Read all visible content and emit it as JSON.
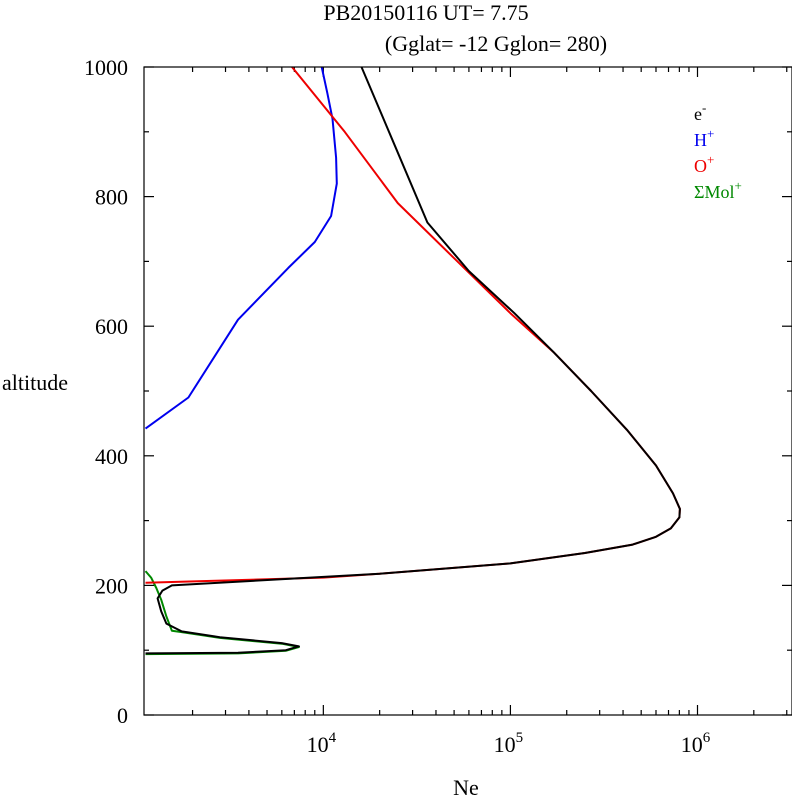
{
  "header": {
    "line1": "PB20150116   UT=  7.75",
    "line2": "(Gglat= -12   Gglon=  280)"
  },
  "chart_data": {
    "type": "line",
    "xlabel": "Ne",
    "ylabel": "altitude",
    "xscale": "log",
    "xlim": [
      1100,
      3200000
    ],
    "ylim": [
      0,
      1000
    ],
    "yticks": [
      {
        "value": 0,
        "label": "0"
      },
      {
        "value": 200,
        "label": "200"
      },
      {
        "value": 400,
        "label": "400"
      },
      {
        "value": 600,
        "label": "600"
      },
      {
        "value": 800,
        "label": "800"
      },
      {
        "value": 1000,
        "label": "1000"
      }
    ],
    "xticks": [
      {
        "value": 10000,
        "base": "10",
        "exp": "4"
      },
      {
        "value": 100000,
        "base": "10",
        "exp": "5"
      },
      {
        "value": 1000000,
        "base": "10",
        "exp": "6"
      }
    ],
    "legend_position": "top-right",
    "series": [
      {
        "name": "e",
        "sup": "-",
        "color": "#000000",
        "points": [
          [
            1120,
            95
          ],
          [
            3500,
            96
          ],
          [
            6300,
            100
          ],
          [
            7400,
            106
          ],
          [
            6000,
            111
          ],
          [
            2800,
            120
          ],
          [
            1750,
            129
          ],
          [
            1450,
            141
          ],
          [
            1360,
            160
          ],
          [
            1300,
            180
          ],
          [
            1380,
            192
          ],
          [
            1550,
            200
          ],
          [
            20000,
            218
          ],
          [
            100000,
            234
          ],
          [
            250000,
            250
          ],
          [
            450000,
            263
          ],
          [
            600000,
            275
          ],
          [
            720000,
            288
          ],
          [
            800000,
            305
          ],
          [
            805000,
            318
          ],
          [
            740000,
            342
          ],
          [
            600000,
            385
          ],
          [
            420000,
            440
          ],
          [
            270000,
            500
          ],
          [
            170000,
            560
          ],
          [
            105000,
            620
          ],
          [
            60000,
            685
          ],
          [
            36000,
            760
          ],
          [
            24000,
            880
          ],
          [
            16000,
            1000
          ]
        ]
      },
      {
        "name": "H",
        "sup": "+",
        "color": "#0000ee",
        "points": [
          [
            1120,
            442
          ],
          [
            1900,
            490
          ],
          [
            3500,
            610
          ],
          [
            6500,
            690
          ],
          [
            9000,
            730
          ],
          [
            11000,
            770
          ],
          [
            11800,
            820
          ],
          [
            11700,
            860
          ],
          [
            11200,
            920
          ],
          [
            10500,
            960
          ],
          [
            9800,
            1000
          ]
        ]
      },
      {
        "name": "O",
        "sup": "+",
        "color": "#ee0000",
        "points": [
          [
            1120,
            204
          ],
          [
            10000,
            212
          ],
          [
            20000,
            218
          ],
          [
            100000,
            234
          ],
          [
            250000,
            250
          ],
          [
            450000,
            263
          ],
          [
            600000,
            275
          ],
          [
            720000,
            288
          ],
          [
            800000,
            305
          ],
          [
            805000,
            318
          ],
          [
            740000,
            342
          ],
          [
            600000,
            385
          ],
          [
            420000,
            440
          ],
          [
            270000,
            500
          ],
          [
            170000,
            560
          ],
          [
            100000,
            620
          ],
          [
            50000,
            705
          ],
          [
            25000,
            790
          ],
          [
            13000,
            900
          ],
          [
            6800,
            1000
          ]
        ]
      },
      {
        "name": "ΣMol",
        "sup": "+",
        "color": "#008800",
        "points": [
          [
            1120,
            222
          ],
          [
            1200,
            212
          ],
          [
            1280,
            196
          ],
          [
            1360,
            178
          ],
          [
            1450,
            152
          ],
          [
            1550,
            130
          ],
          [
            1750,
            128
          ],
          [
            2800,
            119
          ],
          [
            6000,
            110
          ],
          [
            7400,
            105
          ],
          [
            6300,
            99
          ],
          [
            3500,
            95
          ],
          [
            1120,
            94
          ]
        ]
      }
    ]
  }
}
